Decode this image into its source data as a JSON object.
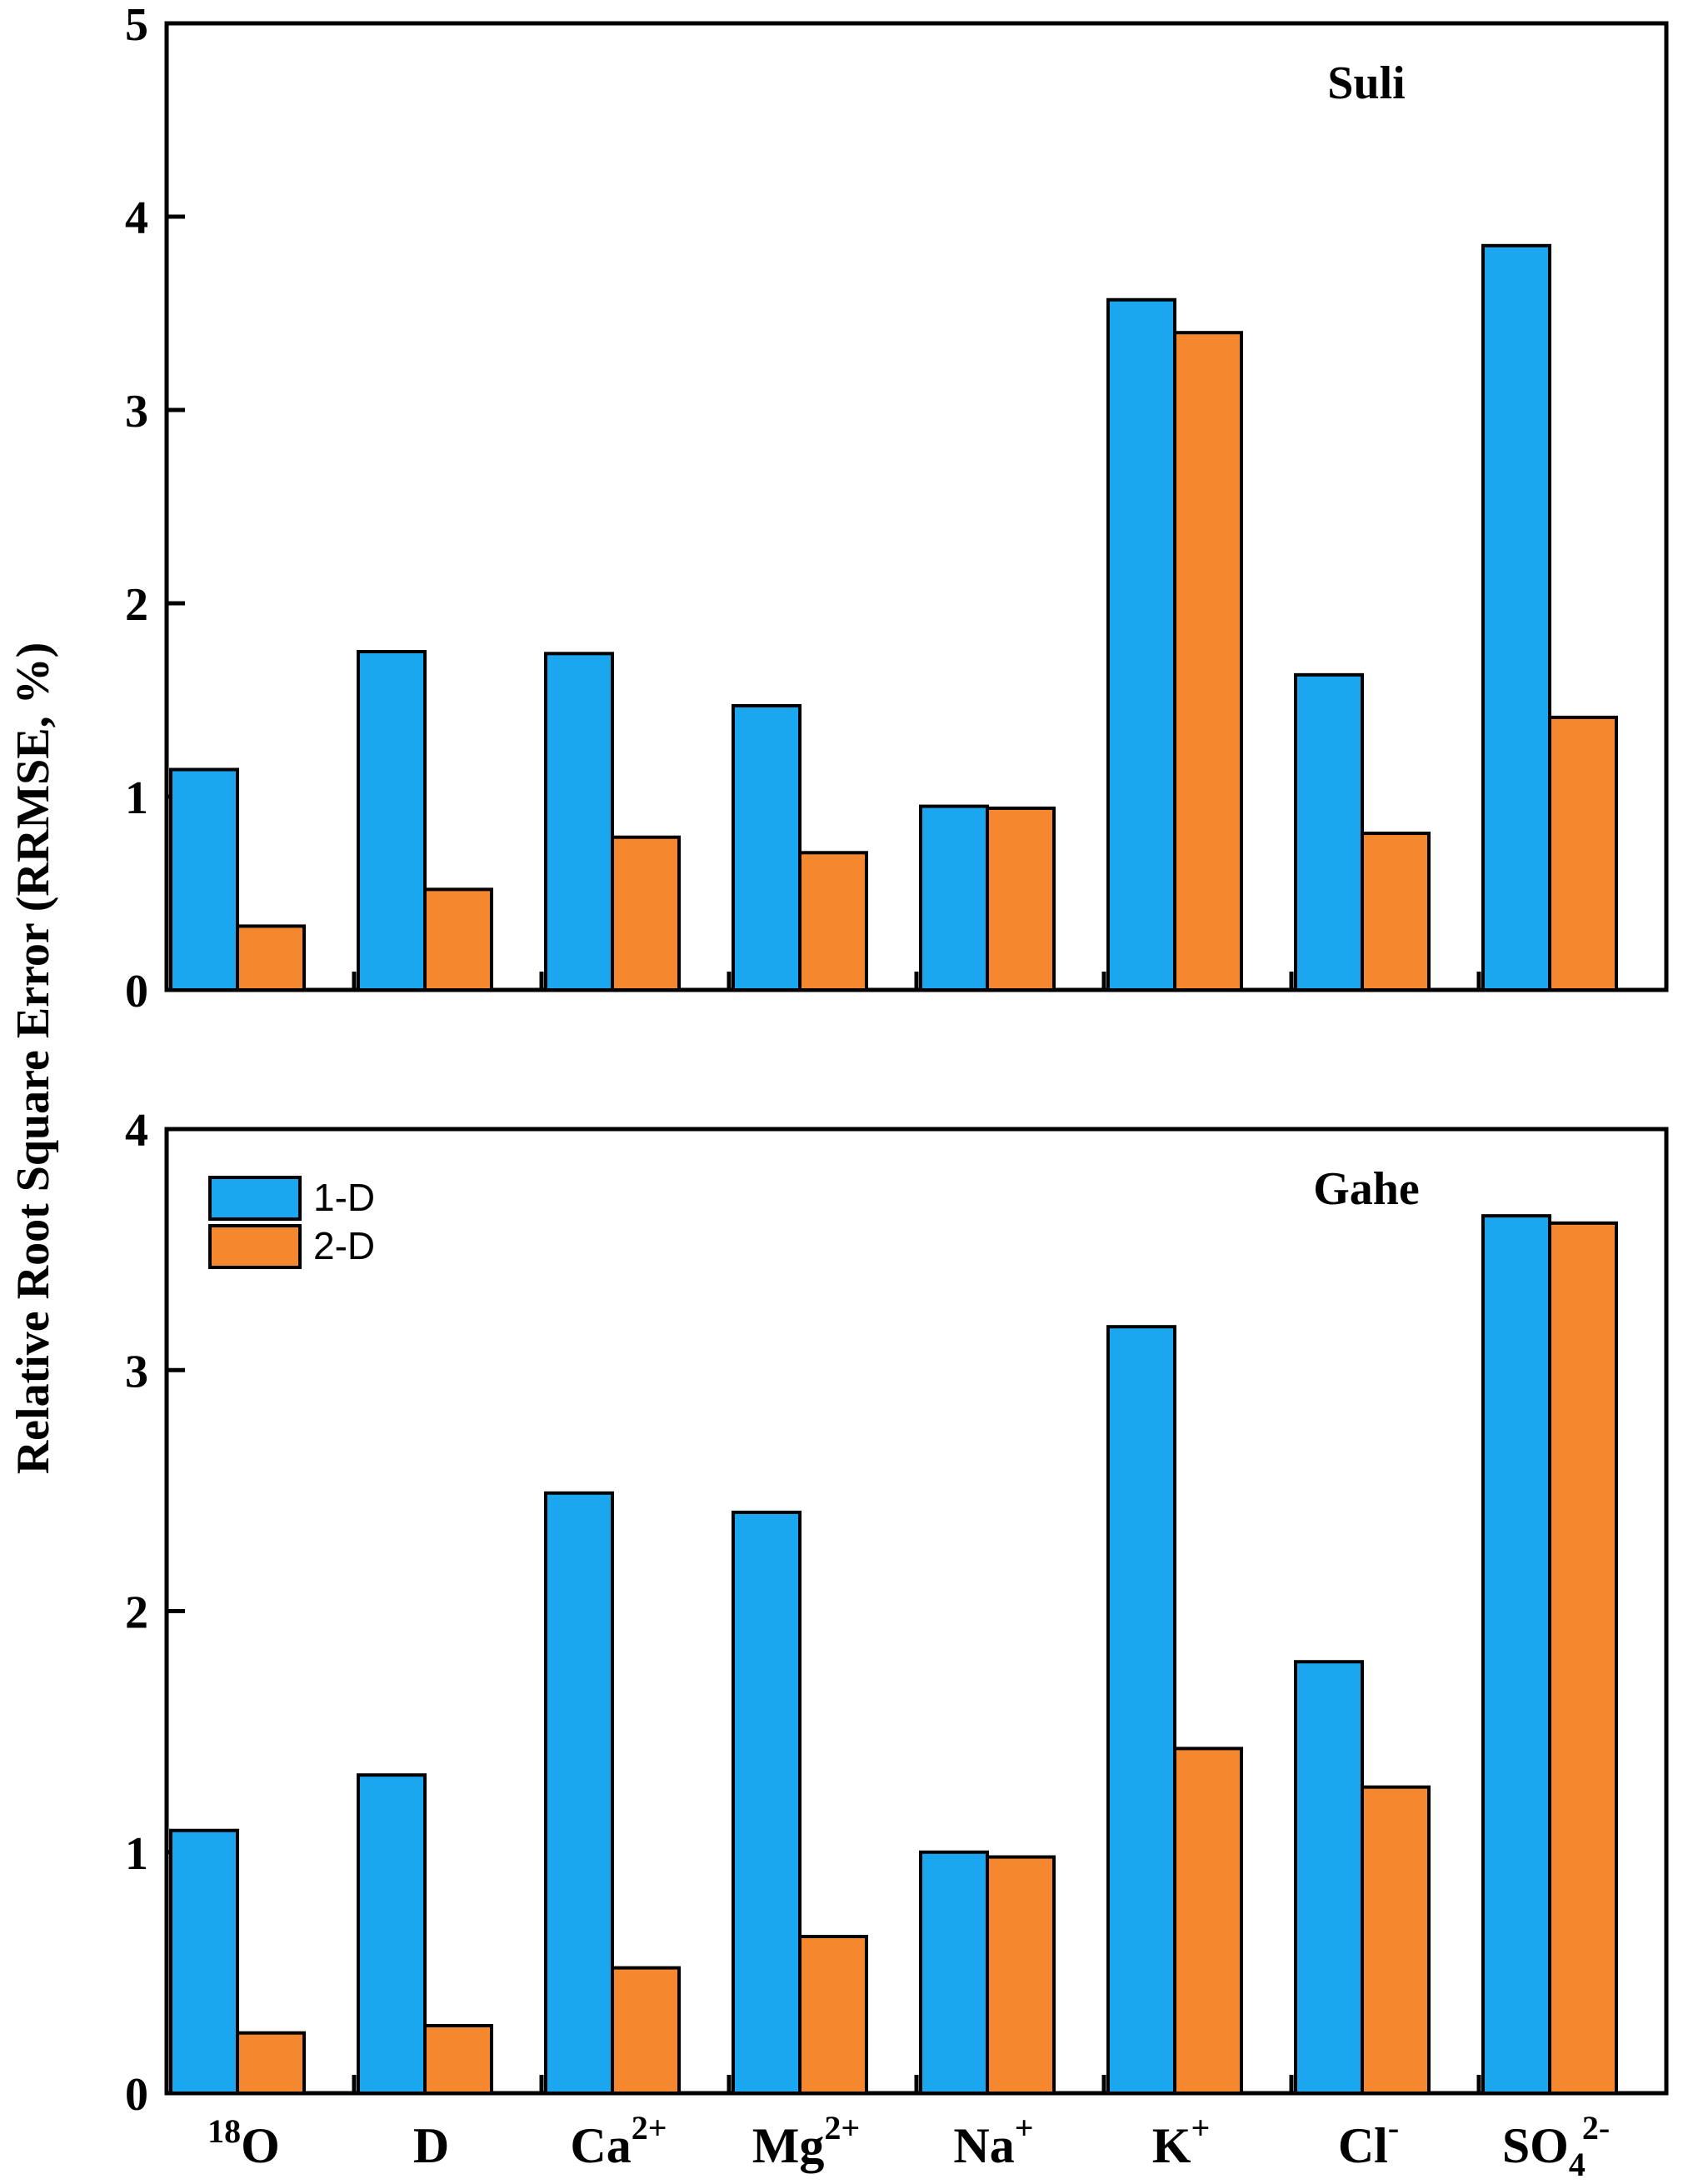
{
  "chart_data": {
    "type": "bar",
    "ylabel": "Relative Root Square Error (RRMSE, %)",
    "categories": [
      {
        "base": "O",
        "sup_before": "18",
        "sub": "",
        "sup_after": ""
      },
      {
        "base": "D",
        "sup_before": "",
        "sub": "",
        "sup_after": ""
      },
      {
        "base": "Ca",
        "sup_before": "",
        "sub": "",
        "sup_after": "2+"
      },
      {
        "base": "Mg",
        "sup_before": "",
        "sub": "",
        "sup_after": "2+"
      },
      {
        "base": "Na",
        "sup_before": "",
        "sub": "",
        "sup_after": "+"
      },
      {
        "base": "K",
        "sup_before": "",
        "sub": "",
        "sup_after": "+"
      },
      {
        "base": "Cl",
        "sup_before": "",
        "sub": "",
        "sup_after": "-"
      },
      {
        "base": "SO",
        "sup_before": "",
        "sub": "4",
        "sup_after": "2-"
      }
    ],
    "legend": {
      "placement": "top-left (bottom panel)",
      "entries": [
        {
          "label": "1-D",
          "color": "#1aa7f0"
        },
        {
          "label": "2-D",
          "color": "#f5882e"
        }
      ]
    },
    "panels": [
      {
        "title": "Suli",
        "ylim": [
          0,
          5
        ],
        "yticks": [
          "0",
          "1",
          "2",
          "3",
          "4",
          "5"
        ],
        "series": [
          {
            "name": "1-D",
            "values": [
              1.14,
              1.75,
              1.74,
              1.47,
              0.95,
              3.57,
              1.63,
              3.85
            ]
          },
          {
            "name": "2-D",
            "values": [
              0.33,
              0.52,
              0.79,
              0.71,
              0.94,
              3.4,
              0.81,
              1.41
            ]
          }
        ]
      },
      {
        "title": "Gahe",
        "ylim": [
          0,
          4
        ],
        "yticks": [
          "0",
          "1",
          "2",
          "3",
          "4"
        ],
        "series": [
          {
            "name": "1-D",
            "values": [
              1.09,
              1.32,
              2.49,
              2.41,
              1.0,
              3.18,
              1.79,
              3.64
            ]
          },
          {
            "name": "2-D",
            "values": [
              0.25,
              0.28,
              0.52,
              0.65,
              0.98,
              1.43,
              1.27,
              3.61
            ]
          }
        ]
      }
    ]
  }
}
